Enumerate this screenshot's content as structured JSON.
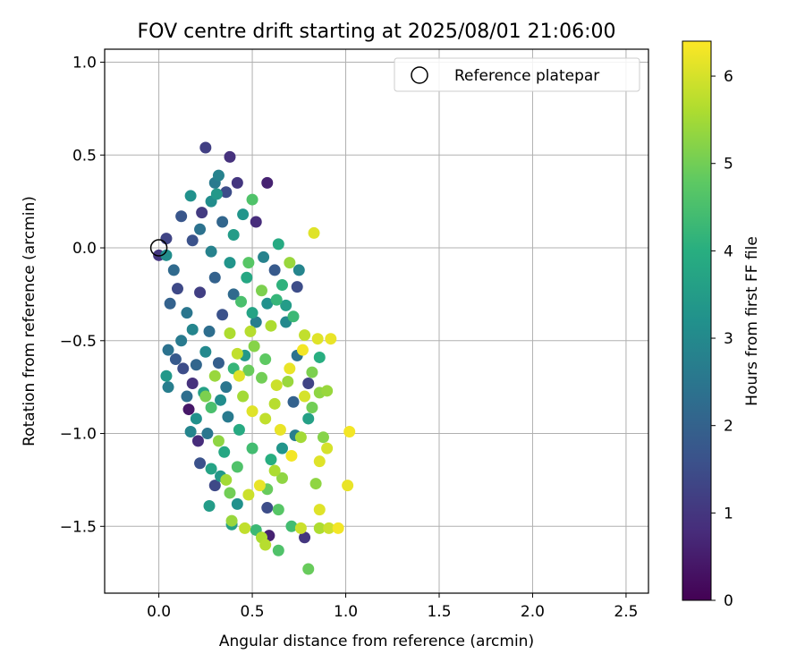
{
  "chart_data": {
    "type": "scatter",
    "title": "FOV centre drift starting at 2025/08/01 21:06:00",
    "xlabel": "Angular distance from reference (arcmin)",
    "ylabel": "Rotation from reference (arcmin)",
    "xlim": [
      -0.29,
      2.62
    ],
    "ylim": [
      -1.86,
      1.07
    ],
    "xticks": [
      0.0,
      0.5,
      1.0,
      1.5,
      2.0,
      2.5
    ],
    "xtick_labels": [
      "0.0",
      "0.5",
      "1.0",
      "1.5",
      "2.0",
      "2.5"
    ],
    "yticks": [
      0.5,
      0.0,
      -0.5,
      -1.0,
      -1.5
    ],
    "ytick_labels": [
      "0.5",
      "0.0",
      "−0.5",
      "−1.0",
      "−1.5"
    ],
    "ytick_top": 1.0,
    "ytick_top_label": "1.0",
    "grid": true,
    "legend": {
      "placement": "upper right",
      "entries": [
        "Reference platepar"
      ]
    },
    "reference_point": {
      "x": 0.0,
      "y": 0.0
    },
    "colorbar": {
      "label": "Hours from first FF file",
      "colormap": "viridis",
      "range": [
        0,
        6.4
      ],
      "ticks": [
        0,
        1,
        2,
        3,
        4,
        5,
        6
      ],
      "tick_labels": [
        "0",
        "1",
        "2",
        "3",
        "4",
        "5",
        "6"
      ]
    },
    "points_note": "Dense cloud of ~2000 measurements; representative points listed as [x, y, hours].",
    "points": [
      [
        0.25,
        0.54,
        1.2
      ],
      [
        0.38,
        0.49,
        0.9
      ],
      [
        0.58,
        0.35,
        0.6
      ],
      [
        0.32,
        0.39,
        2.8
      ],
      [
        0.42,
        0.35,
        1.0
      ],
      [
        0.3,
        0.35,
        2.6
      ],
      [
        0.5,
        0.26,
        4.6
      ],
      [
        0.17,
        0.28,
        3.2
      ],
      [
        0.36,
        0.3,
        1.5
      ],
      [
        0.31,
        0.29,
        3.4
      ],
      [
        0.28,
        0.25,
        3.1
      ],
      [
        0.52,
        0.14,
        0.8
      ],
      [
        0.12,
        0.17,
        1.7
      ],
      [
        0.23,
        0.19,
        1.1
      ],
      [
        0.45,
        0.18,
        3.3
      ],
      [
        0.83,
        0.08,
        6.1
      ],
      [
        0.04,
        0.05,
        1.3
      ],
      [
        0.64,
        0.02,
        3.9
      ],
      [
        0.0,
        -0.04,
        1.0
      ],
      [
        0.04,
        -0.04,
        3.1
      ],
      [
        0.7,
        -0.08,
        5.4
      ],
      [
        0.75,
        -0.12,
        2.9
      ],
      [
        0.74,
        -0.21,
        1.5
      ],
      [
        0.63,
        -0.28,
        4.2
      ],
      [
        0.68,
        -0.31,
        3.5
      ],
      [
        0.06,
        -0.3,
        2.0
      ],
      [
        0.05,
        -0.55,
        2.4
      ],
      [
        0.04,
        -0.69,
        3.4
      ],
      [
        0.05,
        -0.75,
        2.7
      ],
      [
        0.16,
        -0.87,
        0.4
      ],
      [
        0.17,
        -0.99,
        2.9
      ],
      [
        0.21,
        -1.04,
        0.8
      ],
      [
        0.22,
        -1.16,
        1.6
      ],
      [
        0.28,
        -1.19,
        3.7
      ],
      [
        0.3,
        -1.28,
        1.4
      ],
      [
        0.33,
        -1.23,
        3.4
      ],
      [
        0.27,
        -1.39,
        3.5
      ],
      [
        0.38,
        -1.32,
        5.0
      ],
      [
        0.42,
        -1.38,
        3.2
      ],
      [
        0.39,
        -1.47,
        5.4
      ],
      [
        0.46,
        -1.51,
        5.8
      ],
      [
        0.39,
        -1.49,
        3.6
      ],
      [
        0.52,
        -1.52,
        4.3
      ],
      [
        0.55,
        -1.56,
        5.6
      ],
      [
        0.59,
        -1.55,
        0.6
      ],
      [
        0.57,
        -1.6,
        5.7
      ],
      [
        0.64,
        -1.63,
        4.6
      ],
      [
        0.8,
        -1.73,
        4.9
      ],
      [
        0.71,
        -1.5,
        4.4
      ],
      [
        0.78,
        -1.56,
        1.0
      ],
      [
        0.76,
        -1.51,
        5.9
      ],
      [
        0.86,
        -1.51,
        5.6
      ],
      [
        0.91,
        -1.51,
        5.9
      ],
      [
        0.96,
        -1.51,
        6.3
      ],
      [
        0.86,
        -1.41,
        6.1
      ],
      [
        0.64,
        -1.41,
        4.7
      ],
      [
        0.58,
        -1.4,
        1.5
      ],
      [
        1.01,
        -1.28,
        6.2
      ],
      [
        0.84,
        -1.27,
        5.3
      ],
      [
        0.86,
        -1.15,
        6.1
      ],
      [
        0.9,
        -1.08,
        6.0
      ],
      [
        1.02,
        -0.99,
        6.3
      ],
      [
        0.88,
        -1.02,
        5.2
      ],
      [
        0.9,
        -0.77,
        5.4
      ],
      [
        0.86,
        -0.78,
        5.3
      ],
      [
        0.82,
        -0.67,
        5.1
      ],
      [
        0.86,
        -0.59,
        4.0
      ],
      [
        0.92,
        -0.49,
        6.2
      ],
      [
        0.85,
        -0.49,
        6.1
      ],
      [
        0.78,
        -0.47,
        5.8
      ],
      [
        0.72,
        -0.37,
        4.3
      ],
      [
        0.6,
        -0.42,
        5.6
      ],
      [
        0.49,
        -0.45,
        5.7
      ],
      [
        0.42,
        -0.57,
        5.8
      ],
      [
        0.43,
        -0.69,
        6.1
      ],
      [
        0.3,
        -0.69,
        5.4
      ],
      [
        0.25,
        -0.8,
        5.1
      ],
      [
        0.28,
        -0.86,
        4.5
      ],
      [
        0.32,
        -1.04,
        5.3
      ],
      [
        0.36,
        -1.25,
        5.5
      ],
      [
        0.48,
        -1.33,
        5.9
      ],
      [
        0.54,
        -1.28,
        6.2
      ],
      [
        0.62,
        -1.2,
        5.6
      ],
      [
        0.71,
        -1.12,
        6.3
      ],
      [
        0.65,
        -0.98,
        6.2
      ],
      [
        0.57,
        -0.92,
        5.8
      ],
      [
        0.5,
        -0.88,
        6.1
      ],
      [
        0.45,
        -0.8,
        5.5
      ],
      [
        0.63,
        -0.74,
        5.9
      ],
      [
        0.7,
        -0.65,
        6.2
      ],
      [
        0.77,
        -0.55,
        6.3
      ],
      [
        0.57,
        -0.6,
        4.8
      ],
      [
        0.51,
        -0.53,
        5.2
      ],
      [
        0.38,
        -0.46,
        5.6
      ],
      [
        0.44,
        -0.29,
        4.5
      ],
      [
        0.55,
        -0.23,
        5.1
      ],
      [
        0.48,
        -0.08,
        4.7
      ],
      [
        0.38,
        -0.08,
        3.3
      ],
      [
        0.3,
        -0.16,
        2.0
      ],
      [
        0.22,
        -0.24,
        1.2
      ],
      [
        0.15,
        -0.35,
        2.5
      ],
      [
        0.18,
        -0.44,
        2.9
      ],
      [
        0.25,
        -0.56,
        3.0
      ],
      [
        0.2,
        -0.63,
        2.1
      ],
      [
        0.13,
        -0.65,
        1.5
      ],
      [
        0.18,
        -0.73,
        0.9
      ],
      [
        0.24,
        -0.78,
        3.6
      ],
      [
        0.36,
        -0.75,
        2.5
      ],
      [
        0.32,
        -0.62,
        1.9
      ],
      [
        0.27,
        -0.45,
        2.3
      ],
      [
        0.34,
        -0.36,
        1.6
      ],
      [
        0.4,
        -0.25,
        2.2
      ],
      [
        0.47,
        -0.16,
        3.8
      ],
      [
        0.56,
        -0.05,
        2.8
      ],
      [
        0.62,
        -0.12,
        1.8
      ],
      [
        0.66,
        -0.2,
        4.1
      ],
      [
        0.68,
        -0.4,
        3.0
      ],
      [
        0.74,
        -0.58,
        2.4
      ],
      [
        0.8,
        -0.73,
        1.3
      ],
      [
        0.72,
        -0.83,
        2.0
      ],
      [
        0.8,
        -0.92,
        3.6
      ],
      [
        0.73,
        -1.01,
        2.7
      ],
      [
        0.66,
        -1.08,
        3.3
      ],
      [
        0.6,
        -1.14,
        4.0
      ],
      [
        0.5,
        -1.08,
        4.4
      ],
      [
        0.43,
        -0.98,
        3.9
      ],
      [
        0.37,
        -0.91,
        2.6
      ],
      [
        0.33,
        -0.82,
        3.1
      ],
      [
        0.4,
        -0.65,
        4.2
      ],
      [
        0.46,
        -0.58,
        3.4
      ],
      [
        0.52,
        -0.4,
        2.7
      ],
      [
        0.58,
        -0.3,
        3.2
      ],
      [
        0.5,
        -0.35,
        3.7
      ],
      [
        0.28,
        -0.02,
        2.8
      ],
      [
        0.18,
        0.04,
        1.6
      ],
      [
        0.22,
        0.1,
        2.4
      ],
      [
        0.34,
        0.14,
        2.1
      ],
      [
        0.4,
        0.07,
        3.5
      ],
      [
        0.08,
        -0.12,
        2.2
      ],
      [
        0.1,
        -0.22,
        1.4
      ],
      [
        0.12,
        -0.5,
        2.6
      ],
      [
        0.09,
        -0.6,
        1.8
      ],
      [
        0.15,
        -0.8,
        2.3
      ],
      [
        0.2,
        -0.92,
        3.2
      ],
      [
        0.26,
        -1.0,
        2.5
      ],
      [
        0.35,
        -1.1,
        3.8
      ],
      [
        0.42,
        -1.18,
        4.6
      ],
      [
        0.58,
        -1.3,
        4.9
      ],
      [
        0.66,
        -1.24,
        5.3
      ],
      [
        0.76,
        -1.02,
        5.5
      ],
      [
        0.82,
        -0.86,
        5.0
      ],
      [
        0.78,
        -0.8,
        6.0
      ],
      [
        0.69,
        -0.72,
        5.4
      ],
      [
        0.62,
        -0.84,
        5.7
      ],
      [
        0.55,
        -0.7,
        5.0
      ],
      [
        0.48,
        -0.66,
        4.9
      ]
    ]
  }
}
